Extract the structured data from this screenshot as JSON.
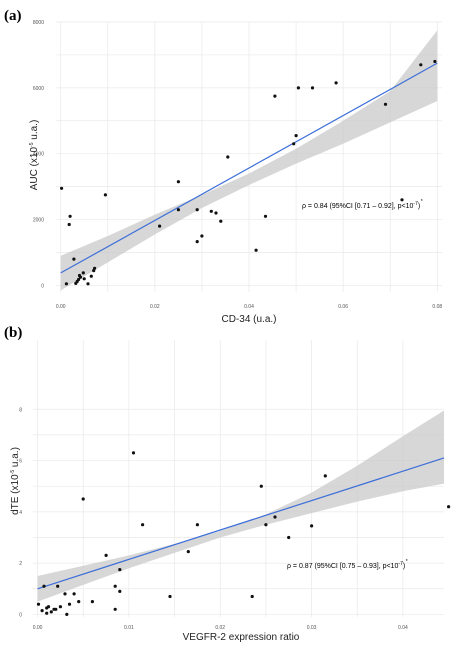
{
  "chart_data": [
    {
      "type": "scatter",
      "panel_label": "(a)",
      "xlabel": "CD-34 (u.a.)",
      "ylabel": {
        "main": "AUC (x10",
        "exp": "-5",
        "tail": " u.a.)"
      },
      "xlim": [
        -0.001,
        0.081
      ],
      "ylim": [
        -200,
        8000
      ],
      "xticks": [
        0.0,
        0.02,
        0.04,
        0.06,
        0.08
      ],
      "xtick_labels": [
        "0.00",
        "0.02",
        "0.04",
        "0.06",
        "0.08"
      ],
      "yticks": [
        0,
        2000,
        4000,
        6000,
        8000
      ],
      "ytick_labels": [
        "0",
        "2000",
        "4000",
        "6000",
        "8000"
      ],
      "grid": true,
      "annotation": {
        "main": "ρ = 0.84 (95%CI [0.71 – 0.92], p<10",
        "exp": "-7",
        "tail": ")",
        "star": "*"
      },
      "fit": {
        "x": [
          0.0,
          0.08
        ],
        "y": [
          380,
          6750
        ]
      },
      "band": {
        "x": [
          0.0,
          0.01,
          0.02,
          0.03,
          0.04,
          0.05,
          0.06,
          0.07,
          0.08
        ],
        "lower": [
          -150,
          700,
          1550,
          2350,
          3050,
          3700,
          4300,
          4950,
          5600
        ],
        "upper": [
          900,
          1500,
          2150,
          2750,
          3400,
          4150,
          5000,
          5900,
          7750
        ]
      },
      "points": {
        "x": [
          0.0002,
          0.0012,
          0.002,
          0.0028,
          0.0018,
          0.0032,
          0.0035,
          0.0038,
          0.004,
          0.0042,
          0.0048,
          0.005,
          0.0058,
          0.0065,
          0.007,
          0.0072,
          0.0095,
          0.021,
          0.025,
          0.025,
          0.029,
          0.029,
          0.03,
          0.032,
          0.033,
          0.034,
          0.0355,
          0.0415,
          0.0435,
          0.0455,
          0.0495,
          0.0505,
          0.05,
          0.0535,
          0.0585,
          0.069,
          0.0725,
          0.0765,
          0.0795
        ],
        "y": [
          2950,
          50,
          2100,
          800,
          1850,
          60,
          120,
          180,
          300,
          250,
          380,
          200,
          50,
          280,
          450,
          520,
          2750,
          1800,
          3150,
          2300,
          2300,
          1330,
          1500,
          2250,
          2200,
          1950,
          3900,
          1070,
          2100,
          5750,
          4300,
          6000,
          4550,
          6000,
          6150,
          5500,
          2600,
          6700,
          6800
        ]
      }
    },
    {
      "type": "scatter",
      "panel_label": "(b)",
      "xlabel": "VEGFR-2 expression ratio",
      "ylabel": {
        "main": "dTE (x10",
        "exp": "-5",
        "tail": " u.a.)"
      },
      "xlim": [
        -0.0005,
        0.0445
      ],
      "ylim": [
        -0.1,
        10.7
      ],
      "xticks": [
        0.0,
        0.01,
        0.02,
        0.03,
        0.04
      ],
      "xtick_labels": [
        "0.00",
        "0.01",
        "0.02",
        "0.03",
        "0.04"
      ],
      "yticks": [
        0,
        2,
        4,
        6,
        8
      ],
      "ytick_labels": [
        "0",
        "2",
        "4",
        "6",
        "8"
      ],
      "grid": true,
      "annotation": {
        "main": "ρ = 0.87 (95%CI [0.75 – 0.93], p<10",
        "exp": "-7",
        "tail": ")",
        "star": "*"
      },
      "fit": {
        "x": [
          0.0,
          0.0445
        ],
        "y": [
          1.0,
          6.1
        ]
      },
      "band": {
        "x": [
          0.0,
          0.005,
          0.01,
          0.015,
          0.02,
          0.025,
          0.03,
          0.035,
          0.04,
          0.0445
        ],
        "lower": [
          0.5,
          1.15,
          1.8,
          2.4,
          3.0,
          3.5,
          3.95,
          4.4,
          4.8,
          5.1
        ],
        "upper": [
          1.5,
          1.9,
          2.3,
          2.75,
          3.25,
          3.9,
          4.75,
          5.8,
          6.95,
          7.95
        ]
      },
      "points": {
        "x": [
          0.0001,
          0.0005,
          0.0007,
          0.001,
          0.001,
          0.0012,
          0.0015,
          0.0018,
          0.002,
          0.0022,
          0.0025,
          0.003,
          0.0032,
          0.0035,
          0.004,
          0.0045,
          0.005,
          0.006,
          0.0075,
          0.0085,
          0.0085,
          0.009,
          0.009,
          0.0105,
          0.0115,
          0.0145,
          0.0165,
          0.0175,
          0.0235,
          0.0245,
          0.025,
          0.026,
          0.0275,
          0.0315,
          0.03,
          0.045
        ],
        "y": [
          0.4,
          0.15,
          1.1,
          0.05,
          0.25,
          0.3,
          0.1,
          0.2,
          0.2,
          1.1,
          0.3,
          0.8,
          0.0,
          0.4,
          0.8,
          0.5,
          4.5,
          0.5,
          2.3,
          1.1,
          0.2,
          1.75,
          0.9,
          6.3,
          3.5,
          0.7,
          2.45,
          3.5,
          0.7,
          5.0,
          3.5,
          3.8,
          3.0,
          5.4,
          3.45,
          4.2
        ]
      }
    }
  ]
}
